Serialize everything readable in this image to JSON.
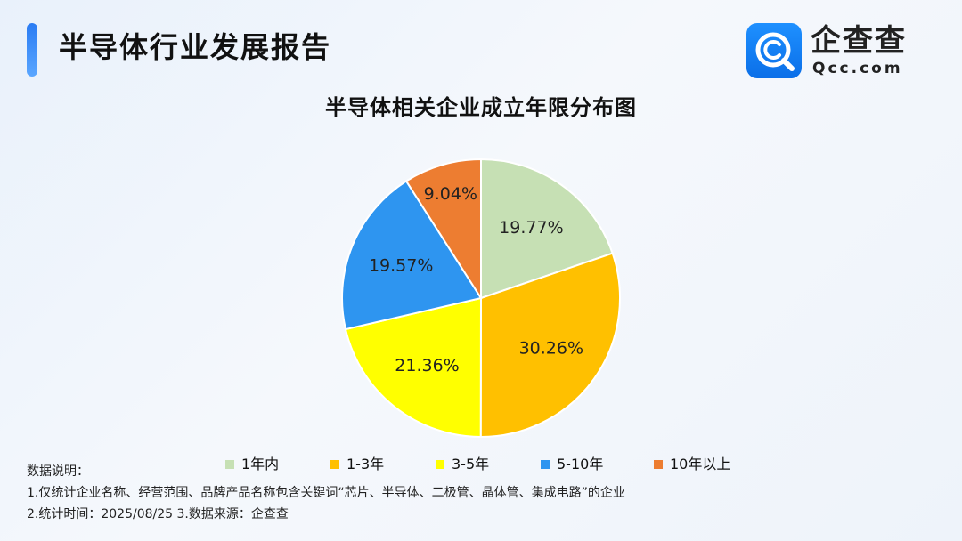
{
  "header": {
    "title": "半导体行业发展报告"
  },
  "brand": {
    "name": "企查查",
    "domain": "Qcc.com",
    "logo_icon": "qcc-logo-icon",
    "accent_color": "#1e88f5"
  },
  "chart_data": {
    "type": "pie",
    "title": "半导体相关企业成立年限分布图",
    "unit": "%",
    "slices": [
      {
        "label": "1年内",
        "value": 19.77,
        "display": "19.77%",
        "color": "#c6e0b4"
      },
      {
        "label": "1-3年",
        "value": 30.26,
        "display": "30.26%",
        "color": "#ffc000"
      },
      {
        "label": "3-5年",
        "value": 21.36,
        "display": "21.36%",
        "color": "#ffff00"
      },
      {
        "label": "5-10年",
        "value": 19.57,
        "display": "19.57%",
        "color": "#2e95f0"
      },
      {
        "label": "10年以上",
        "value": 9.04,
        "display": "9.04%",
        "color": "#ed7d31"
      }
    ],
    "start": "12 o'clock",
    "direction": "clockwise",
    "legend_position": "bottom"
  },
  "notes": {
    "heading": "数据说明：",
    "lines": [
      "1.仅统计企业名称、经营范围、品牌产品名称包含关键词“芯片、半导体、二极管、晶体管、集成电路”的企业",
      "2.统计时间：2025/08/25    3.数据来源：企查查"
    ]
  }
}
